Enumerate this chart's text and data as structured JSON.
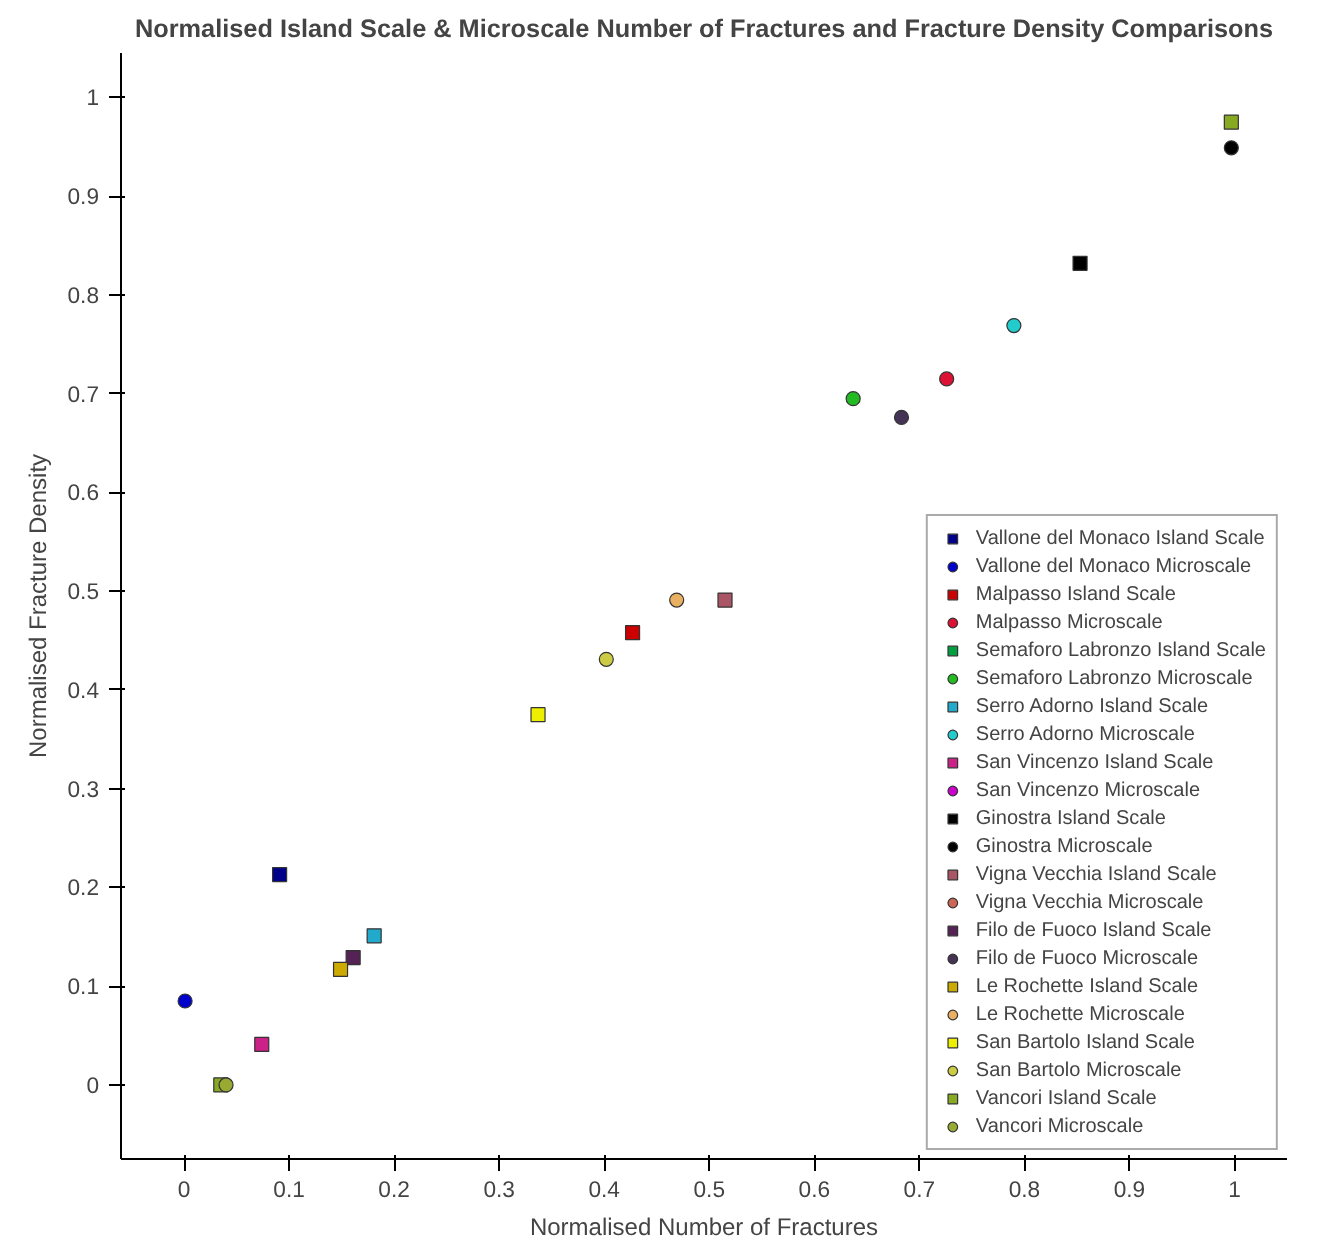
{
  "chart_data": {
    "type": "scatter",
    "title": "Normalised Island Scale & Microscale Number of Fractures and Fracture Density Comparisons",
    "xlabel": "Normalised Number of Fractures",
    "ylabel": "Normalised Fracture Density",
    "xlim": [
      -0.06,
      1.05
    ],
    "ylim": [
      -0.075,
      1.045
    ],
    "xticks": [
      0,
      0.1,
      0.2,
      0.3,
      0.4,
      0.5,
      0.6,
      0.7,
      0.8,
      0.9,
      1
    ],
    "yticks": [
      0,
      0.1,
      0.2,
      0.3,
      0.4,
      0.5,
      0.6,
      0.7,
      0.8,
      0.9,
      1
    ],
    "grid": false,
    "legend": "bottom right",
    "series": [
      {
        "name": "Vallone del Monaco Island Scale",
        "color": "#00008b",
        "marker": "square",
        "x": [
          0.091
        ],
        "values": [
          0.213
        ]
      },
      {
        "name": "Vallone del Monaco Microscale",
        "color": "#0000cc",
        "marker": "circle",
        "x": [
          0.001
        ],
        "values": [
          0.085
        ]
      },
      {
        "name": "Malpasso Island Scale",
        "color": "#cc0000",
        "marker": "square",
        "x": [
          0.427
        ],
        "values": [
          0.458
        ]
      },
      {
        "name": "Malpasso Microscale",
        "color": "#dd1133",
        "marker": "circle",
        "x": [
          0.726
        ],
        "values": [
          0.715
        ]
      },
      {
        "name": "Semaforo Labronzo Island Scale",
        "color": "#00a040",
        "marker": "square",
        "x": [
          null
        ],
        "values": [
          null
        ]
      },
      {
        "name": "Semaforo Labronzo Microscale",
        "color": "#22bb22",
        "marker": "circle",
        "x": [
          0.637
        ],
        "values": [
          0.695
        ]
      },
      {
        "name": "Serro Adorno Island Scale",
        "color": "#22aacc",
        "marker": "square",
        "x": [
          0.181
        ],
        "values": [
          0.151
        ]
      },
      {
        "name": "Serro Adorno Microscale",
        "color": "#22cccc",
        "marker": "circle",
        "x": [
          0.79
        ],
        "values": [
          0.769
        ]
      },
      {
        "name": "San Vincenzo Island Scale",
        "color": "#cc2288",
        "marker": "square",
        "x": [
          0.074
        ],
        "values": [
          0.041
        ]
      },
      {
        "name": "San Vincenzo Microscale",
        "color": "#cc00cc",
        "marker": "circle",
        "x": [
          null
        ],
        "values": [
          null
        ]
      },
      {
        "name": "Ginostra Island Scale",
        "color": "#000000",
        "marker": "square",
        "x": [
          0.853
        ],
        "values": [
          0.832
        ]
      },
      {
        "name": "Ginostra Microscale",
        "color": "#000000",
        "marker": "circle",
        "x": [
          0.997
        ],
        "values": [
          0.949
        ]
      },
      {
        "name": "Vigna Vecchia Island Scale",
        "color": "#aa5566",
        "marker": "square",
        "x": [
          0.515
        ],
        "values": [
          0.491
        ]
      },
      {
        "name": "Vigna Vecchia Microscale",
        "color": "#cc6655",
        "marker": "circle",
        "x": [
          null
        ],
        "values": [
          null
        ]
      },
      {
        "name": "Filo de Fuoco Island Scale",
        "color": "#552255",
        "marker": "square",
        "x": [
          0.161
        ],
        "values": [
          0.129
        ]
      },
      {
        "name": "Filo de Fuoco Microscale",
        "color": "#443355",
        "marker": "circle",
        "x": [
          0.683
        ],
        "values": [
          0.676
        ]
      },
      {
        "name": "Le Rochette Island Scale",
        "color": "#ccaa00",
        "marker": "square",
        "x": [
          0.149
        ],
        "values": [
          0.117
        ]
      },
      {
        "name": "Le Rochette Microscale",
        "color": "#e8b060",
        "marker": "circle",
        "x": [
          0.469
        ],
        "values": [
          0.491
        ]
      },
      {
        "name": "San Bartolo Island Scale",
        "color": "#eeee00",
        "marker": "square",
        "x": [
          0.337
        ],
        "values": [
          0.375
        ]
      },
      {
        "name": "San Bartolo Microscale",
        "color": "#cccc44",
        "marker": "circle",
        "x": [
          0.402
        ],
        "values": [
          0.431
        ]
      },
      {
        "name": "Vancori Island Scale",
        "color": "#88aa22",
        "marker": "square",
        "x": [
          0.035,
          0.997
        ],
        "values": [
          0.0,
          0.975
        ]
      },
      {
        "name": "Vancori Microscale",
        "color": "#99aa33",
        "marker": "circle",
        "x": [
          0.04
        ],
        "values": [
          0.0
        ]
      }
    ]
  }
}
